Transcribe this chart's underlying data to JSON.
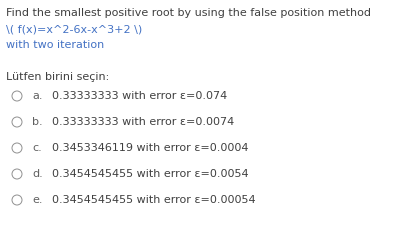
{
  "title_line1": "Find the smallest positive root by using the false position method",
  "title_line2": "\\( f(x)=x^2-6x-x^3+2 \\)",
  "title_line3": "with two iteration",
  "prompt": "Lütfen birini seçin:",
  "options": [
    {
      "label": "a.",
      "text": "0.33333333 with error ε=0.074"
    },
    {
      "label": "b.",
      "text": "0.33333333 with error ε=0.0074"
    },
    {
      "label": "c.",
      "text": "0.3453346119 with error ε=0.0004"
    },
    {
      "label": "d.",
      "text": "0.3454545455 with error ε=0.0054"
    },
    {
      "label": "e.",
      "text": "0.3454545455 with error ε=0.00054"
    }
  ],
  "bg_color": "#ffffff",
  "title_color": "#404040",
  "formula_color": "#4472c4",
  "iteration_color": "#4472c4",
  "prompt_color": "#404040",
  "option_label_color": "#606060",
  "option_text_color": "#404040",
  "circle_color": "#909090",
  "title_fontsize": 8.0,
  "option_fontsize": 8.0
}
